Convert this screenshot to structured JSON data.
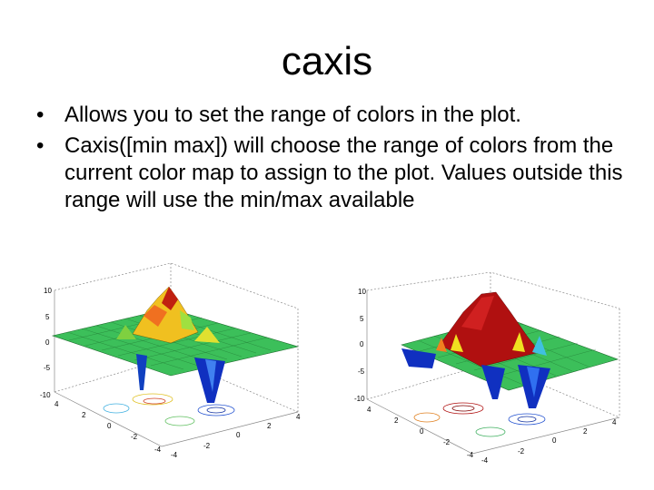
{
  "slide": {
    "title": "caxis",
    "bullets": [
      "Allows you to set the range of colors in the plot.",
      "Caxis([min max]) will choose the range of colors from the current color map to assign to the plot. Values outside this range will use the min/max available"
    ]
  },
  "plots": {
    "left": {
      "z_ticks": [
        "10",
        "5",
        "0",
        "-5",
        "-10"
      ],
      "y_ticks": [
        "4",
        "2",
        "0",
        "-2",
        "-4"
      ],
      "x_ticks": [
        "-4",
        "-2",
        "0",
        "2",
        "4"
      ]
    },
    "right": {
      "z_ticks": [
        "10",
        "5",
        "0",
        "-5",
        "-10"
      ],
      "y_ticks": [
        "4",
        "2",
        "0",
        "-2",
        "-4"
      ],
      "x_ticks": [
        "-4",
        "-2",
        "0",
        "2",
        "4"
      ]
    }
  },
  "colors": {
    "surface_green": "#3cbf5a",
    "peak_red": "#b01010",
    "peak_yellow": "#f0e020",
    "trough_blue": "#1030c0"
  }
}
